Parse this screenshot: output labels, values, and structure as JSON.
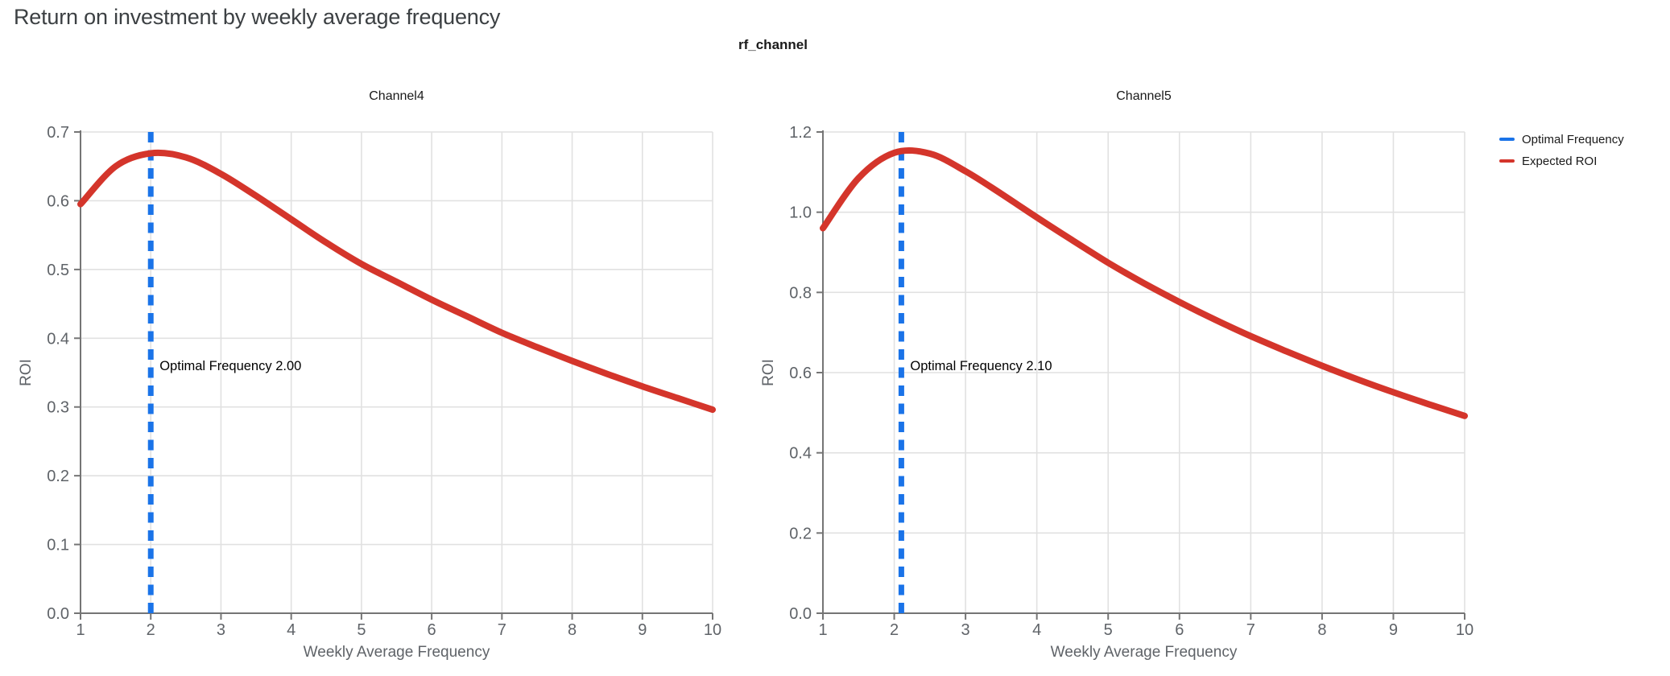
{
  "page": {
    "title": "Return on investment by weekly average frequency",
    "facet_title": "rf_channel"
  },
  "legend": {
    "items": [
      {
        "label": "Optimal Frequency",
        "color": "#1a73e8"
      },
      {
        "label": "Expected ROI",
        "color": "#d4352b"
      }
    ]
  },
  "colors": {
    "optimal_line": "#1a73e8",
    "roi_line": "#d4352b",
    "grid": "#e1e1e1",
    "axis": "#757575",
    "tick_label": "#5f6368",
    "axis_title": "#5f6368",
    "chart_title": "#1a1a1a",
    "annotation": "#000000"
  },
  "chart_data": [
    {
      "type": "line",
      "title": "Channel4",
      "xlabel": "Weekly Average Frequency",
      "ylabel": "ROI",
      "xlim": [
        1,
        10
      ],
      "ylim": [
        0,
        0.7
      ],
      "x_ticks": [
        1,
        2,
        3,
        4,
        5,
        6,
        7,
        8,
        9,
        10
      ],
      "y_ticks": [
        0.0,
        0.1,
        0.2,
        0.3,
        0.4,
        0.5,
        0.6,
        0.7
      ],
      "grid": true,
      "optimal_frequency": 2.0,
      "annotation": "Optimal Frequency  2.00",
      "series": [
        {
          "name": "Expected ROI",
          "x": [
            1.0,
            1.5,
            2.0,
            2.5,
            3.0,
            3.5,
            4.0,
            4.5,
            5.0,
            5.5,
            6.0,
            6.5,
            7.0,
            7.5,
            8.0,
            8.5,
            9.0,
            9.5,
            10.0
          ],
          "y": [
            0.595,
            0.65,
            0.669,
            0.663,
            0.639,
            0.607,
            0.573,
            0.539,
            0.508,
            0.482,
            0.456,
            0.432,
            0.408,
            0.387,
            0.367,
            0.348,
            0.33,
            0.313,
            0.296
          ]
        }
      ]
    },
    {
      "type": "line",
      "title": "Channel5",
      "xlabel": "Weekly Average Frequency",
      "ylabel": "ROI",
      "xlim": [
        1,
        10
      ],
      "ylim": [
        0,
        1.2
      ],
      "x_ticks": [
        1,
        2,
        3,
        4,
        5,
        6,
        7,
        8,
        9,
        10
      ],
      "y_ticks": [
        0.0,
        0.2,
        0.4,
        0.6,
        0.8,
        1.0,
        1.2
      ],
      "grid": true,
      "optimal_frequency": 2.1,
      "annotation": "Optimal Frequency  2.10",
      "series": [
        {
          "name": "Expected ROI",
          "x": [
            1.0,
            1.5,
            2.0,
            2.5,
            3.0,
            3.5,
            4.0,
            4.5,
            5.0,
            5.5,
            6.0,
            6.5,
            7.0,
            7.5,
            8.0,
            8.5,
            9.0,
            9.5,
            10.0
          ],
          "y": [
            0.96,
            1.085,
            1.148,
            1.146,
            1.102,
            1.046,
            0.987,
            0.93,
            0.874,
            0.823,
            0.776,
            0.732,
            0.691,
            0.653,
            0.617,
            0.583,
            0.551,
            0.521,
            0.492
          ]
        }
      ]
    }
  ]
}
